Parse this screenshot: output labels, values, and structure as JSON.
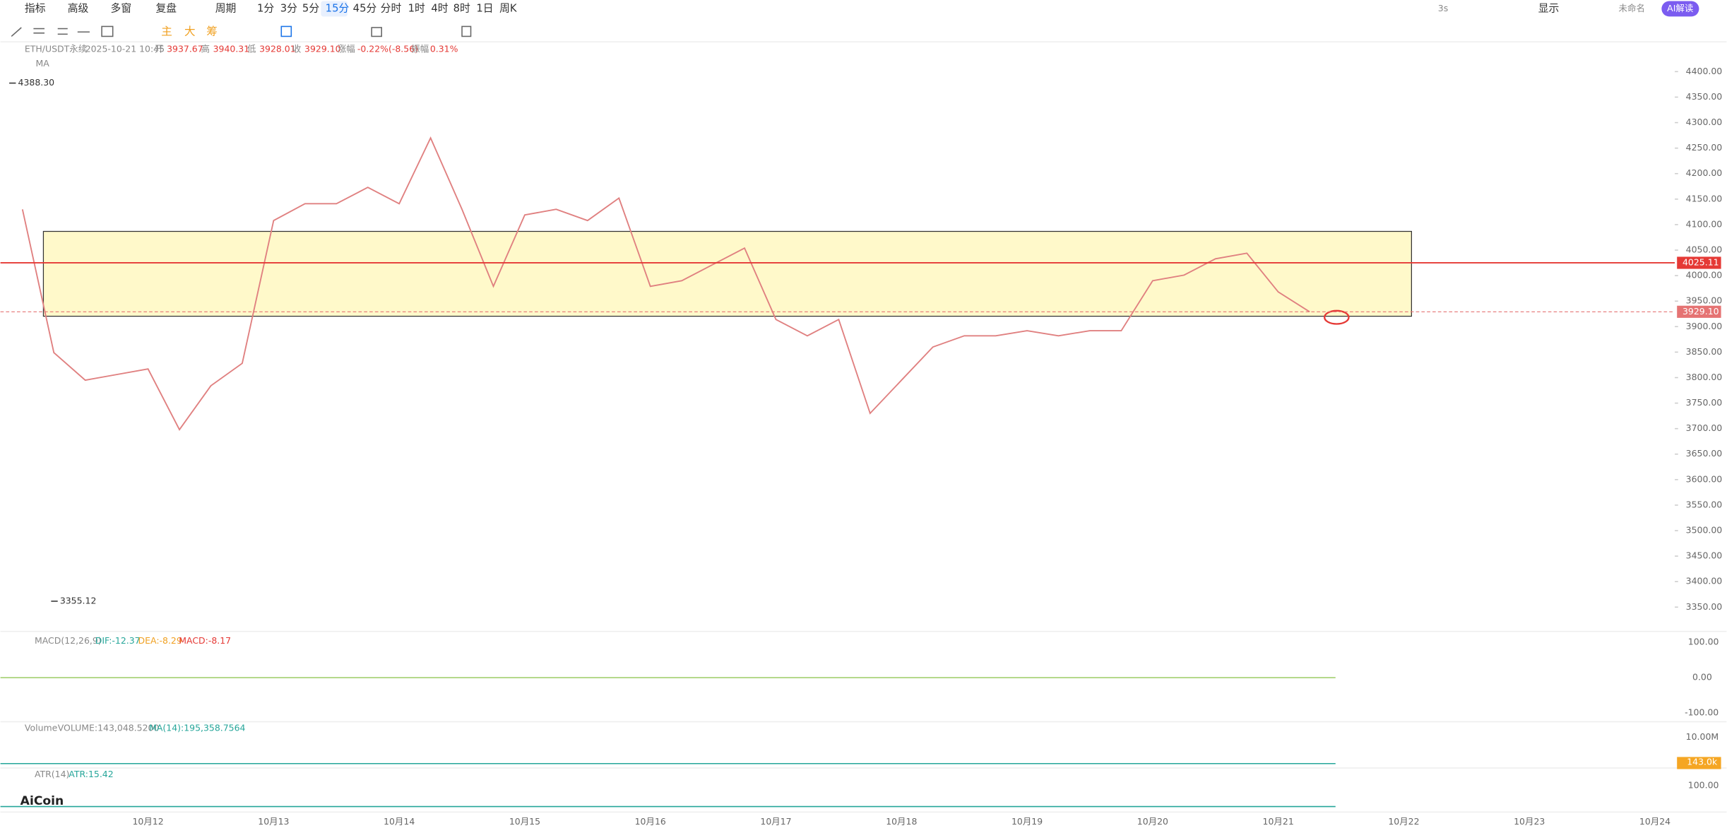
{
  "toolbar": {
    "items": [
      "指标",
      "高级",
      "多窗",
      "复盘",
      "周期",
      "1分",
      "3分",
      "5分",
      "15分",
      "45分",
      "分时",
      "1时",
      "4时",
      "8时",
      "1日",
      "周K"
    ],
    "right": [
      "3s",
      "显示",
      "未命名",
      "AI解读"
    ]
  },
  "tools": {
    "items": [
      "主",
      "大",
      "筹"
    ]
  },
  "header": {
    "symbol": "ETH/USDT永续",
    "datetime": "2025-10-21 10:45",
    "open_label": "开",
    "open": "3937.67",
    "high_label": "高",
    "high": "3940.31",
    "low_label": "低",
    "low": "3928.01",
    "close_label": "收",
    "close": "3929.10",
    "change_label": "涨幅",
    "change": "-0.22%(-8.56)",
    "amplitude_label": "振幅",
    "amplitude": "0.31%",
    "ma": "MA"
  },
  "chart_data": {
    "type": "line",
    "color": "#e08080",
    "categories": [
      null,
      null,
      null,
      null,
      "10月12",
      null,
      null,
      null,
      "10月13",
      null,
      null,
      null,
      "10月14",
      null,
      null,
      null,
      "10月15",
      null,
      null,
      null,
      "10月16",
      null,
      null,
      null,
      "10月17",
      null,
      null,
      null,
      "10月18",
      null,
      null,
      null,
      "10月19",
      null,
      null,
      null,
      "10月20",
      null,
      null,
      null,
      "10月21",
      null,
      null,
      null,
      "10月22",
      null,
      null,
      null,
      "10月23",
      null,
      null,
      null,
      "10月24"
    ],
    "values": [
      4130,
      3849,
      3795,
      3806,
      3817,
      3698,
      3784,
      3828,
      4108,
      4141,
      4141,
      4173,
      4141,
      4270,
      4130,
      3979,
      4119,
      4130,
      4108,
      4152,
      3979,
      3990,
      4022,
      4054,
      3914,
      3882,
      3914,
      3730,
      3795,
      3860,
      3882,
      3882,
      3892,
      3882,
      3892,
      3892,
      3990,
      4001,
      4033,
      4044,
      3968,
      3929.1,
      null,
      null,
      null,
      null,
      null,
      null,
      null,
      null,
      null,
      null,
      null
    ],
    "ylim": [
      3350,
      4400
    ],
    "yticks": [
      {
        "value": 4400,
        "label": "4400.00"
      },
      {
        "value": 4350,
        "label": "4350.00"
      },
      {
        "value": 4300,
        "label": "4300.00"
      },
      {
        "value": 4250,
        "label": "4250.00"
      },
      {
        "value": 4200,
        "label": "4200.00"
      },
      {
        "value": 4150,
        "label": "4150.00"
      },
      {
        "value": 4100,
        "label": "4100.00"
      },
      {
        "value": 4050,
        "label": "4050.00"
      },
      {
        "value": 4000,
        "label": "4000.00"
      },
      {
        "value": 3950,
        "label": "3950.00"
      },
      {
        "value": 3900,
        "label": "3900.00"
      },
      {
        "value": 3850,
        "label": "3850.00"
      },
      {
        "value": 3800,
        "label": "3800.00"
      },
      {
        "value": 3750,
        "label": "3750.00"
      },
      {
        "value": 3700,
        "label": "3700.00"
      },
      {
        "value": 3650,
        "label": "3650.00"
      },
      {
        "value": 3600,
        "label": "3600.00"
      },
      {
        "value": 3550,
        "label": "3550.00"
      },
      {
        "value": 3500,
        "label": "3500.00"
      },
      {
        "value": 3450,
        "label": "3450.00"
      },
      {
        "value": 3400,
        "label": "3400.00"
      },
      {
        "value": 3350,
        "label": "3350.00"
      }
    ],
    "hlines": [
      {
        "value": 4025.11,
        "label": "4025.11",
        "color": "#e53935"
      },
      {
        "value": 3929.1,
        "label": "3929.10",
        "color": "#e57373"
      }
    ],
    "annotations": [
      {
        "value": 4388.3,
        "label": "4388.30"
      },
      {
        "value": 3355.12
      }
    ]
  },
  "indicators": {
    "macd": {
      "name": "MACD(12,26,9)",
      "dif": "DIF:-12.37",
      "dea": "DEA:-8.29",
      "macd": "MACD:-8.17",
      "ticks": [
        "100.00",
        "0.00",
        "-100.00"
      ]
    },
    "volume": {
      "name": "Volume",
      "volume": "VOLUME:143,048.5200",
      "ma": "MA(14):195,358.7564",
      "ticks": [
        "10.00M"
      ],
      "current": "143.0k"
    },
    "atr": {
      "name": "ATR(14)",
      "atr": "ATR:15.42",
      "ticks": [
        "100.00"
      ]
    }
  },
  "logo": "AiCoin"
}
